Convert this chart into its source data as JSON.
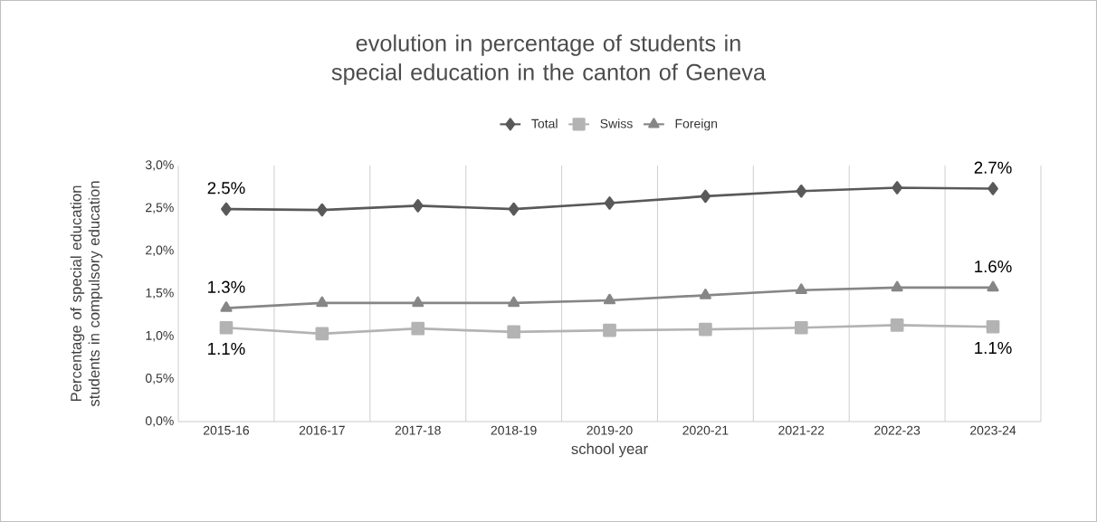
{
  "chart_data": {
    "type": "line",
    "title": "evolution in percentage of students in special education in the canton of Geneva",
    "xlabel": "school year",
    "ylabel": "Percentage of special education students in compulsory education",
    "categories": [
      "2015-16",
      "2016-17",
      "2017-18",
      "2018-19",
      "2019-20",
      "2020-21",
      "2021-22",
      "2022-23",
      "2023-24"
    ],
    "series": [
      {
        "name": "Total",
        "color": "#595959",
        "marker": "diamond",
        "values": [
          2.49,
          2.48,
          2.53,
          2.49,
          2.56,
          2.64,
          2.7,
          2.74,
          2.73
        ],
        "value_labels": [
          "2.5%",
          null,
          null,
          null,
          null,
          null,
          null,
          null,
          "2.7%"
        ]
      },
      {
        "name": "Swiss",
        "color": "#b3b3b3",
        "marker": "square",
        "values": [
          1.1,
          1.03,
          1.09,
          1.05,
          1.07,
          1.08,
          1.1,
          1.13,
          1.11
        ],
        "value_labels": [
          "1.1%",
          null,
          null,
          null,
          null,
          null,
          null,
          null,
          "1.1%"
        ]
      },
      {
        "name": "Foreign",
        "color": "#868686",
        "marker": "triangle",
        "values": [
          1.33,
          1.39,
          1.39,
          1.39,
          1.42,
          1.48,
          1.54,
          1.57,
          1.57
        ],
        "value_labels": [
          "1.3%",
          null,
          null,
          null,
          null,
          null,
          null,
          null,
          "1.6%"
        ]
      }
    ],
    "ylim": [
      0,
      3
    ],
    "yticks": [
      {
        "value": 0,
        "label": "0,0%"
      },
      {
        "value": 0.5,
        "label": "0,5%"
      },
      {
        "value": 1,
        "label": "1,0%"
      },
      {
        "value": 1.5,
        "label": "1,5%"
      },
      {
        "value": 2,
        "label": "2,0%"
      },
      {
        "value": 2.5,
        "label": "2,5%"
      },
      {
        "value": 3,
        "label": "3,0%"
      }
    ],
    "grid": "x",
    "legend": "top",
    "line_style": "solid"
  }
}
